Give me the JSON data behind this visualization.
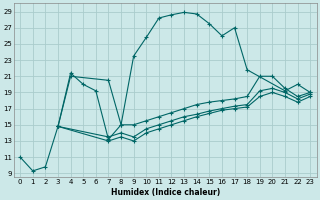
{
  "title": "",
  "xlabel": "Humidex (Indice chaleur)",
  "bg_color": "#cce8e8",
  "grid_color": "#aacccc",
  "line_color": "#006666",
  "xlim": [
    -0.5,
    23.5
  ],
  "ylim": [
    8.5,
    30
  ],
  "xticks": [
    0,
    1,
    2,
    3,
    4,
    5,
    6,
    7,
    8,
    9,
    10,
    11,
    12,
    13,
    14,
    15,
    16,
    17,
    18,
    19,
    20,
    21,
    22,
    23
  ],
  "yticks": [
    9,
    11,
    13,
    15,
    17,
    19,
    21,
    23,
    25,
    27,
    29
  ],
  "series": [
    {
      "x": [
        0,
        1,
        2,
        3,
        4,
        5,
        6,
        7,
        8,
        9,
        10,
        11,
        12,
        13,
        14,
        15,
        16,
        17,
        18,
        21,
        22,
        23
      ],
      "y": [
        11,
        9.3,
        9.8,
        14.8,
        21.4,
        20.0,
        19.2,
        13.2,
        15.0,
        23.5,
        25.8,
        28.2,
        28.6,
        28.9,
        28.7,
        27.5,
        26.0,
        27.0,
        21.8,
        19.2,
        20.0,
        19.0
      ]
    },
    {
      "x": [
        3,
        4,
        7,
        8,
        9,
        10,
        11,
        12,
        13,
        14,
        15,
        16,
        17,
        18,
        19,
        20,
        21,
        22,
        23
      ],
      "y": [
        14.8,
        21.0,
        20.5,
        15.0,
        15.0,
        15.5,
        16.0,
        16.5,
        17.0,
        17.5,
        17.8,
        18.0,
        18.2,
        18.5,
        21.0,
        21.0,
        19.5,
        18.5,
        19.0
      ]
    },
    {
      "x": [
        3,
        7,
        8,
        9,
        10,
        11,
        12,
        13,
        14,
        15,
        16,
        17,
        18,
        19,
        20,
        21,
        22,
        23
      ],
      "y": [
        14.8,
        13.5,
        14.0,
        13.5,
        14.5,
        15.0,
        15.5,
        16.0,
        16.3,
        16.7,
        17.0,
        17.3,
        17.5,
        19.2,
        19.5,
        19.0,
        18.2,
        18.8
      ]
    },
    {
      "x": [
        3,
        7,
        8,
        9,
        10,
        11,
        12,
        13,
        14,
        15,
        16,
        17,
        18,
        19,
        20,
        21,
        22,
        23
      ],
      "y": [
        14.8,
        13.0,
        13.5,
        13.0,
        14.0,
        14.5,
        15.0,
        15.5,
        16.0,
        16.4,
        16.8,
        17.0,
        17.2,
        18.5,
        19.0,
        18.5,
        17.8,
        18.5
      ]
    }
  ]
}
